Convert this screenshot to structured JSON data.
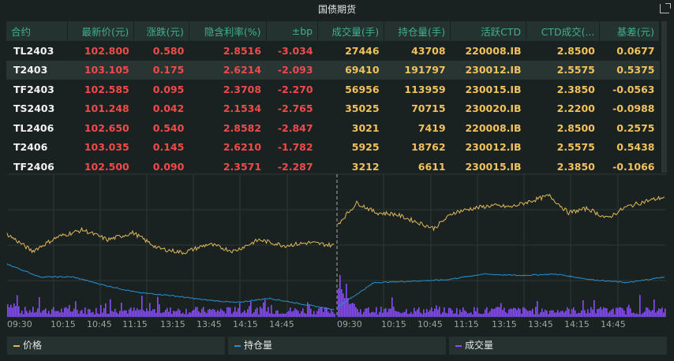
{
  "title": "国债期货",
  "table": {
    "headers": [
      "合约",
      "最新价(元)",
      "涨跌(元)",
      "隐含利率(%)",
      "±bp",
      "成交量(手)",
      "持仓量(手)",
      "活跃CTD",
      "CTD成交(...",
      "基差(元)"
    ],
    "rows": [
      [
        "TL2403",
        "102.800",
        "0.580",
        "2.8516",
        "-3.034",
        "27446",
        "43708",
        "220008.IB",
        "2.8500",
        "0.0677"
      ],
      [
        "T2403",
        "103.105",
        "0.175",
        "2.6214",
        "-2.093",
        "69410",
        "191797",
        "230012.IB",
        "2.5575",
        "0.5375"
      ],
      [
        "TF2403",
        "102.585",
        "0.095",
        "2.3708",
        "-2.270",
        "56956",
        "113959",
        "230015.IB",
        "2.3850",
        "-0.0563"
      ],
      [
        "TS2403",
        "101.248",
        "0.042",
        "2.1534",
        "-2.765",
        "35025",
        "70715",
        "230020.IB",
        "2.2200",
        "-0.0988"
      ],
      [
        "TL2406",
        "102.650",
        "0.540",
        "2.8582",
        "-2.847",
        "3021",
        "7419",
        "220008.IB",
        "2.8500",
        "0.2575"
      ],
      [
        "T2406",
        "103.035",
        "0.145",
        "2.6210",
        "-1.782",
        "5925",
        "18762",
        "230012.IB",
        "2.5575",
        "0.5438"
      ],
      [
        "TF2406",
        "102.500",
        "0.090",
        "2.3571",
        "-2.287",
        "3212",
        "6611",
        "230015.IB",
        "2.3850",
        "-0.1066"
      ]
    ],
    "selected_row": 1
  },
  "colors": {
    "price": "#e0b85a",
    "oi": "#2a8fd0",
    "volume": "#8a4cff",
    "up": "#f04a4a",
    "volume_text": "#f0c25e",
    "header": "#3fb08f"
  },
  "chart_data": {
    "type": "line",
    "x_ticks": [
      [
        "09:30",
        "10:15",
        "10:45",
        "11:15",
        "13:15",
        "13:45",
        "14:15",
        "14:45"
      ],
      [
        "09:30",
        "10:15",
        "10:45",
        "11:15",
        "13:15",
        "13:45",
        "14:15",
        "14:45"
      ]
    ],
    "series": [
      {
        "name": "价格",
        "halves": [
          [
            58,
            46,
            56,
            61,
            54,
            59,
            48,
            45,
            51,
            46,
            54,
            50,
            52,
            50
          ],
          [
            65,
            80,
            73,
            72,
            67,
            62,
            73,
            76,
            78,
            77,
            81,
            85,
            73,
            76,
            69,
            77,
            81,
            84
          ]
        ]
      },
      {
        "name": "持仓量",
        "halves": [
          [
            37,
            28,
            28,
            22,
            17,
            15,
            12,
            10,
            13,
            9,
            5
          ],
          [
            7,
            24,
            25,
            26,
            30,
            29,
            30,
            26,
            24,
            28
          ]
        ]
      },
      {
        "name": "成交量"
      }
    ],
    "grid": true
  },
  "legend": [
    "价格",
    "持仓量",
    "成交量"
  ]
}
